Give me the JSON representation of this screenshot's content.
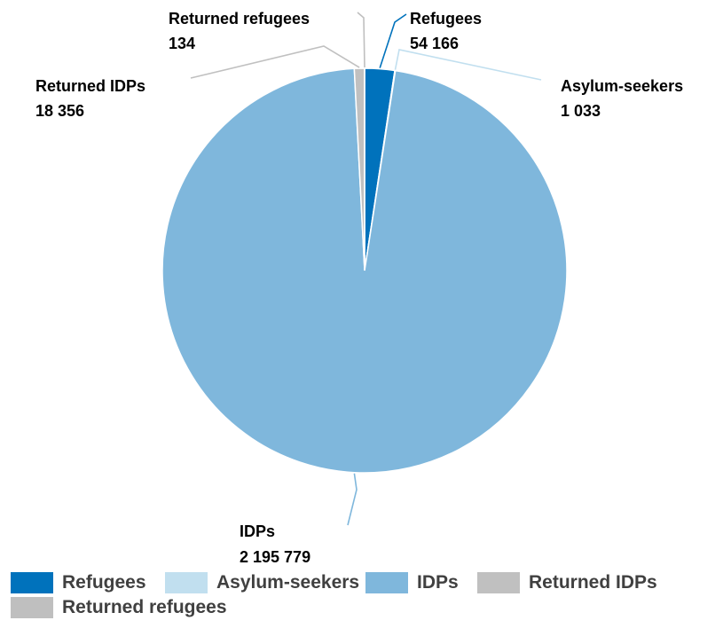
{
  "chart_data": {
    "type": "pie",
    "categories": [
      "Refugees",
      "Asylum-seekers",
      "IDPs",
      "Returned IDPs",
      "Returned refugees"
    ],
    "values": [
      54166,
      1033,
      2195779,
      18356,
      134
    ],
    "value_labels": [
      "54 166",
      "1 033",
      "2 195 779",
      "18 356",
      "134"
    ],
    "colors": [
      "#0072bc",
      "#c1dfef",
      "#7fb7dc",
      "#c0c0c0",
      "#bfbfbf"
    ],
    "start_angle": "12 o'clock",
    "direction": "clockwise",
    "legend_position": "bottom"
  },
  "legend": {
    "items": [
      {
        "label": "Refugees",
        "color": "#0072bc"
      },
      {
        "label": "Asylum-seekers",
        "color": "#c1dfef"
      },
      {
        "label": "IDPs",
        "color": "#7fb7dc"
      },
      {
        "label": "Returned IDPs",
        "color": "#c0c0c0"
      },
      {
        "label": "Returned refugees",
        "color": "#bfbfbf"
      }
    ]
  }
}
